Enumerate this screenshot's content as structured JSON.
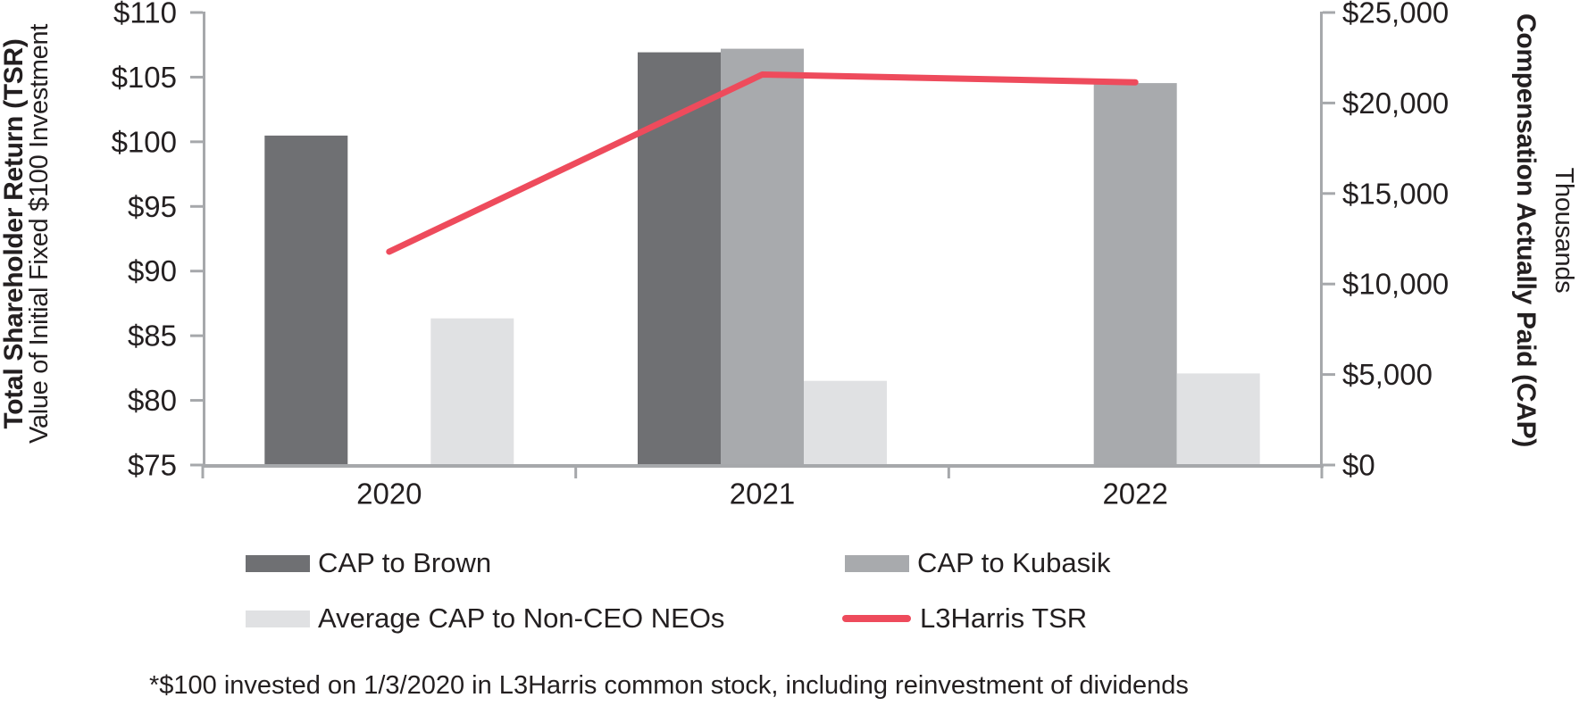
{
  "chart_data": {
    "type": "combo-bar-line",
    "categories": [
      "2020",
      "2021",
      "2022"
    ],
    "bar_series": [
      {
        "name": "CAP to Brown",
        "color": "#6f7073",
        "axis": "right",
        "values": [
          18200,
          22800,
          null
        ]
      },
      {
        "name": "CAP to Kubasik",
        "color": "#a8aaad",
        "axis": "right",
        "values": [
          null,
          23000,
          21100
        ]
      },
      {
        "name": "Average CAP to Non-CEO NEOs",
        "color": "#e0e1e3",
        "axis": "right",
        "values": [
          8100,
          4650,
          5060
        ]
      }
    ],
    "line_series": {
      "name": "L3Harris TSR",
      "color": "#ee4b5c",
      "axis": "left",
      "values": [
        91.5,
        105.2,
        104.6
      ]
    },
    "left_axis": {
      "title": "Total Shareholder Return (TSR)",
      "subtitle": "Value of Initial Fixed $100 Investment",
      "min": 75,
      "max": 110,
      "step": 5,
      "tick_prefix": "$"
    },
    "right_axis": {
      "title": "Compensation Actually Paid (CAP)",
      "subtitle": "Thousands",
      "min": 0,
      "max": 25000,
      "step": 5000,
      "tick_prefix": "$"
    },
    "legend_position": "bottom",
    "grid": false,
    "axis_color": "#a6a8ab",
    "text_color": "#231f20"
  },
  "footnote": "*$100 invested on 1/3/2020 in L3Harris common stock, including reinvestment of dividends"
}
